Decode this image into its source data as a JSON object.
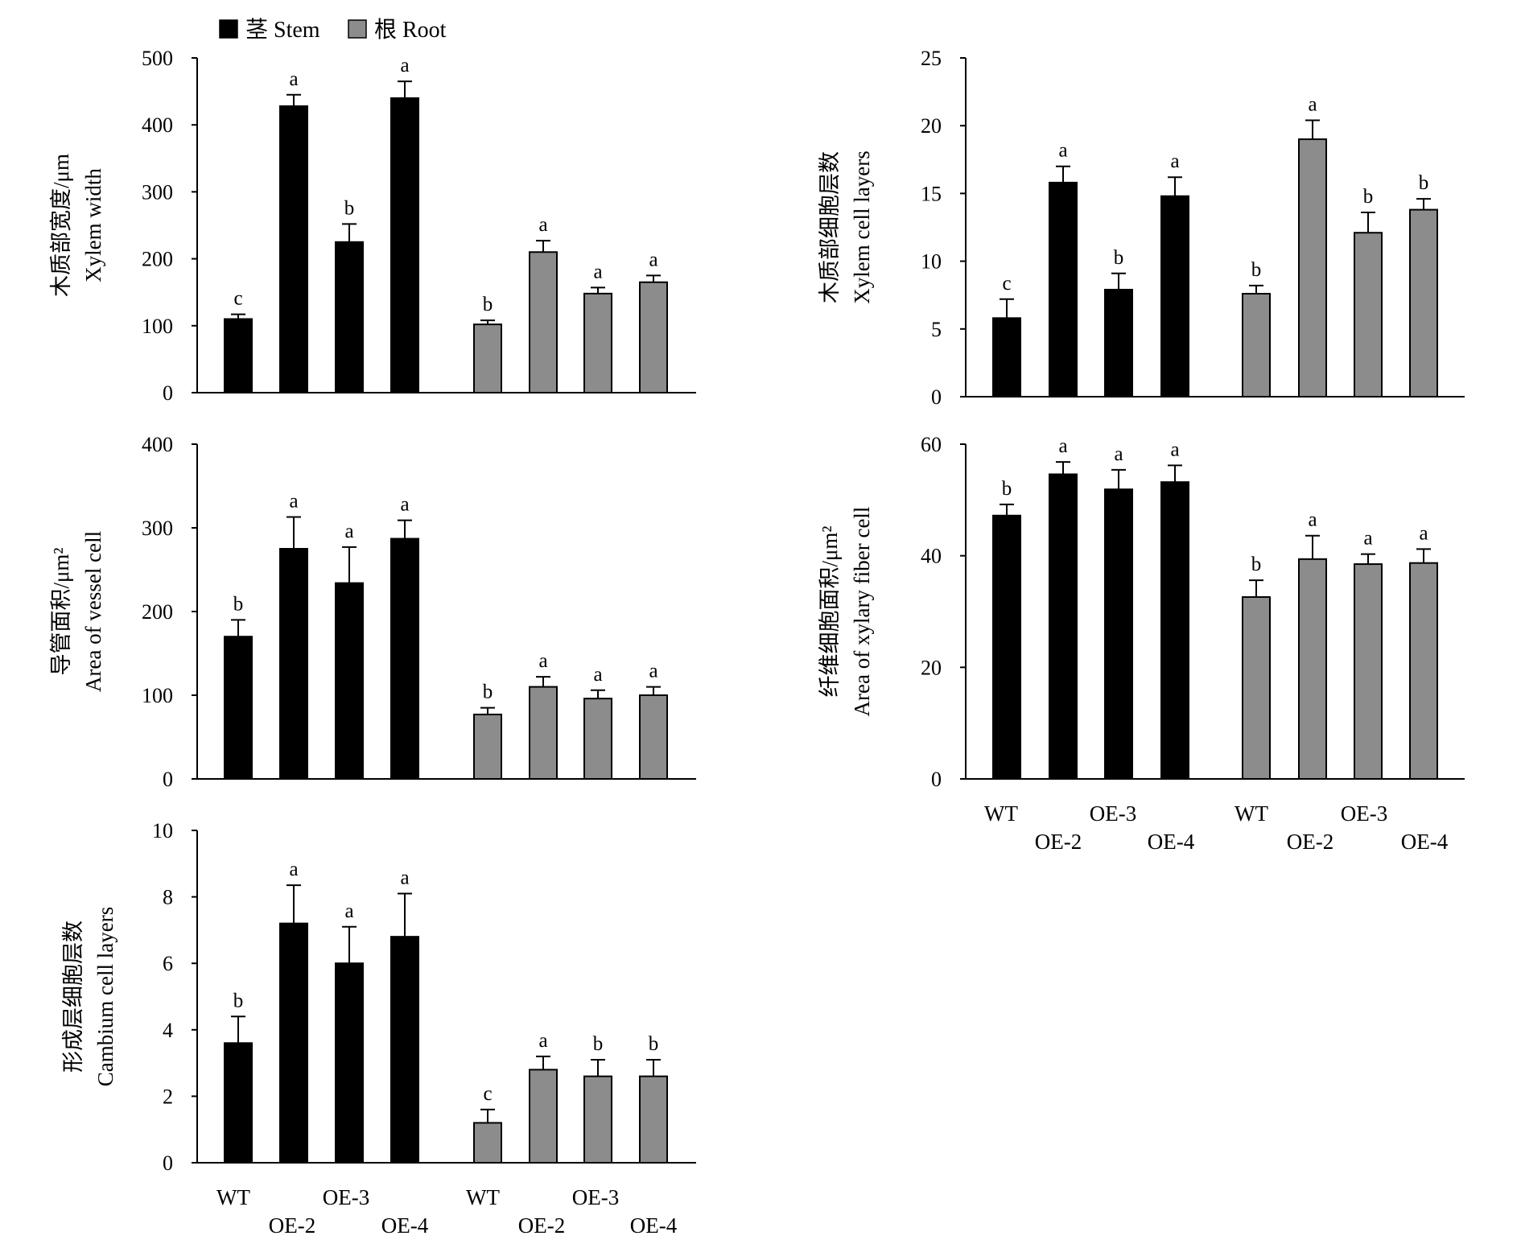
{
  "legend": {
    "stem": "茎 Stem",
    "root": "根 Root",
    "stem_color": "#000000",
    "root_color": "#8c8c8c"
  },
  "x_labels": {
    "wt": "WT",
    "oe2": "OE-2",
    "oe3": "OE-3",
    "oe4": "OE-4"
  },
  "chart_data": [
    {
      "type": "bar",
      "ylabel_cn": "木质部宽度/μm",
      "ylabel_en": "Xylem width",
      "ylim": [
        0,
        500
      ],
      "yticks": [
        0,
        100,
        200,
        300,
        400,
        500
      ],
      "categories": [
        "WT",
        "OE-2",
        "OE-3",
        "OE-4"
      ],
      "series": [
        {
          "name": "茎 Stem",
          "values": [
            110,
            428,
            225,
            440
          ],
          "errors": [
            7,
            17,
            27,
            25
          ],
          "letters": [
            "c",
            "a",
            "b",
            "a"
          ]
        },
        {
          "name": "根 Root",
          "values": [
            102,
            210,
            148,
            165
          ],
          "errors": [
            6,
            17,
            9,
            10
          ],
          "letters": [
            "b",
            "a",
            "a",
            "a"
          ]
        }
      ]
    },
    {
      "type": "bar",
      "ylabel_cn": "木质部细胞层数",
      "ylabel_en": "Xylem cell layers",
      "ylim": [
        0,
        25
      ],
      "yticks": [
        0,
        5,
        10,
        15,
        20,
        25
      ],
      "categories": [
        "WT",
        "OE-2",
        "OE-3",
        "OE-4"
      ],
      "series": [
        {
          "name": "茎 Stem",
          "values": [
            5.8,
            15.8,
            7.9,
            14.8
          ],
          "errors": [
            1.4,
            1.2,
            1.2,
            1.4
          ],
          "letters": [
            "c",
            "a",
            "b",
            "a"
          ]
        },
        {
          "name": "根 Root",
          "values": [
            7.6,
            19.0,
            12.1,
            13.8
          ],
          "errors": [
            0.6,
            1.4,
            1.5,
            0.8
          ],
          "letters": [
            "b",
            "a",
            "b",
            "b"
          ]
        }
      ]
    },
    {
      "type": "bar",
      "ylabel_cn": "导管面积/μm²",
      "ylabel_en": "Area of vessel cell",
      "ylim": [
        0,
        400
      ],
      "yticks": [
        0,
        100,
        200,
        300,
        400
      ],
      "categories": [
        "WT",
        "OE-2",
        "OE-3",
        "OE-4"
      ],
      "series": [
        {
          "name": "茎 Stem",
          "values": [
            170,
            275,
            234,
            287
          ],
          "errors": [
            20,
            38,
            43,
            22
          ],
          "letters": [
            "b",
            "a",
            "a",
            "a"
          ]
        },
        {
          "name": "根 Root",
          "values": [
            77,
            110,
            96,
            100
          ],
          "errors": [
            8,
            12,
            10,
            10
          ],
          "letters": [
            "b",
            "a",
            "a",
            "a"
          ]
        }
      ]
    },
    {
      "type": "bar",
      "ylabel_cn": "纤维细胞面积/μm²",
      "ylabel_en": "Area of xylary fiber cell",
      "ylim": [
        0,
        60
      ],
      "yticks": [
        0,
        20,
        40,
        60
      ],
      "categories": [
        "WT",
        "OE-2",
        "OE-3",
        "OE-4"
      ],
      "series": [
        {
          "name": "茎 Stem",
          "values": [
            47.2,
            54.6,
            51.9,
            53.2
          ],
          "errors": [
            2.0,
            2.2,
            3.5,
            3.0
          ],
          "letters": [
            "b",
            "a",
            "a",
            "a"
          ]
        },
        {
          "name": "根 Root",
          "values": [
            32.6,
            39.4,
            38.5,
            38.7
          ],
          "errors": [
            3.0,
            4.2,
            1.8,
            2.5
          ],
          "letters": [
            "b",
            "a",
            "a",
            "a"
          ]
        }
      ]
    },
    {
      "type": "bar",
      "ylabel_cn": "形成层细胞层数",
      "ylabel_en": "Cambium cell layers",
      "ylim": [
        0,
        10
      ],
      "yticks": [
        0,
        2,
        4,
        6,
        8,
        10
      ],
      "categories": [
        "WT",
        "OE-2",
        "OE-3",
        "OE-4"
      ],
      "series": [
        {
          "name": "茎 Stem",
          "values": [
            3.6,
            7.2,
            6.0,
            6.8
          ],
          "errors": [
            0.8,
            1.15,
            1.1,
            1.3
          ],
          "letters": [
            "b",
            "a",
            "a",
            "a"
          ]
        },
        {
          "name": "根 Root",
          "values": [
            1.2,
            2.8,
            2.6,
            2.6
          ],
          "errors": [
            0.4,
            0.4,
            0.5,
            0.5
          ],
          "letters": [
            "c",
            "a",
            "b",
            "b"
          ]
        }
      ]
    }
  ]
}
